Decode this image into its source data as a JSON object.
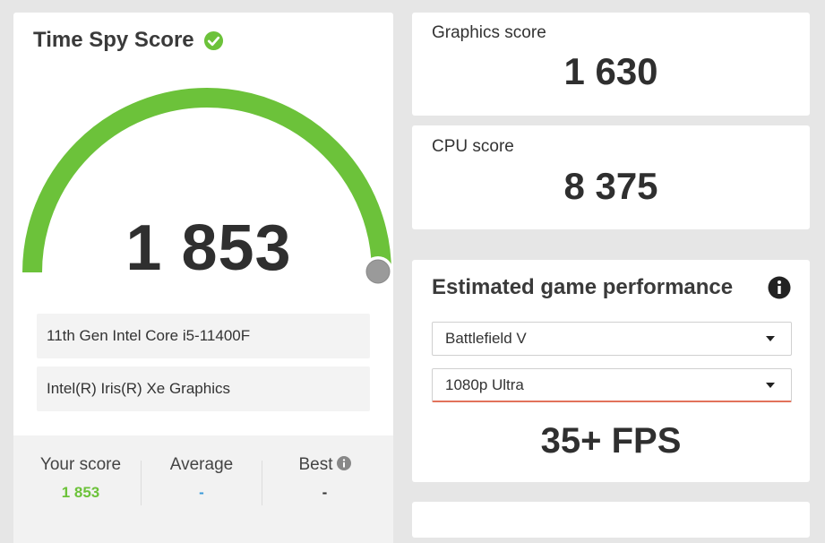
{
  "score_card": {
    "title": "Time Spy Score",
    "score": "1 853",
    "gauge_fill_fraction": 1.0,
    "accent_color": "#6cc23a",
    "cpu_name": "11th Gen Intel Core i5-11400F",
    "gpu_name": "Intel(R) Iris(R) Xe Graphics",
    "stats": {
      "your_score_label": "Your score",
      "your_score_value": "1 853",
      "average_label": "Average",
      "average_value": "-",
      "best_label": "Best",
      "best_value": "-"
    }
  },
  "graphics": {
    "label": "Graphics score",
    "value": "1 630"
  },
  "cpu": {
    "label": "CPU score",
    "value": "8 375"
  },
  "game_performance": {
    "title": "Estimated game performance",
    "game_selected": "Battlefield V",
    "resolution_selected": "1080p Ultra",
    "fps": "35+ FPS"
  }
}
